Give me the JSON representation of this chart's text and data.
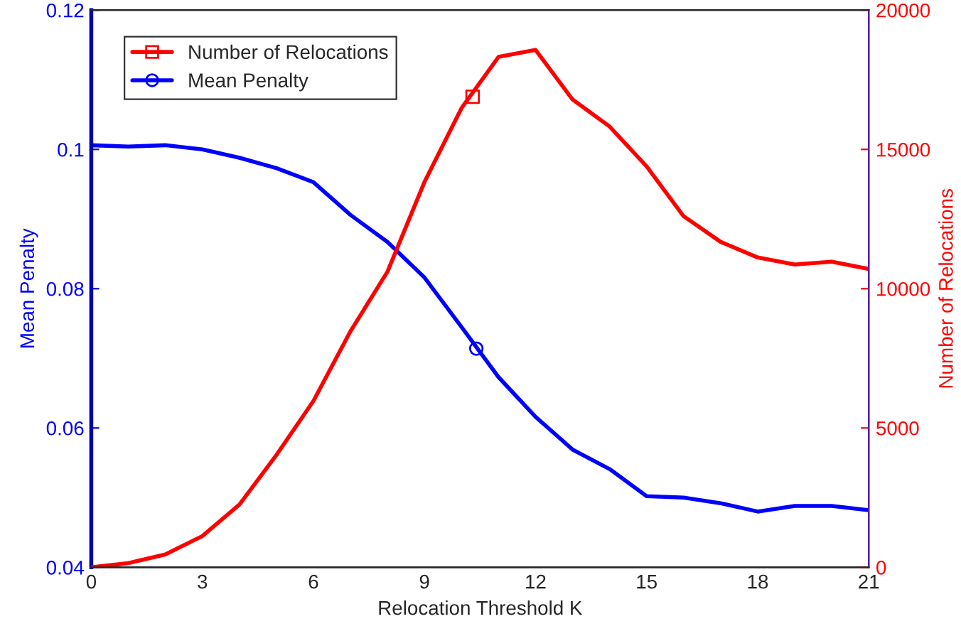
{
  "chart_data": {
    "type": "line",
    "xlabel": "Relocation Threshold K",
    "ylabel": "Mean Penalty",
    "y2label": "Number of Relocations",
    "x": [
      0,
      1,
      2,
      3,
      4,
      5,
      6,
      7,
      8,
      9,
      10,
      11,
      12,
      13,
      14,
      15,
      16,
      17,
      18,
      19,
      20,
      21
    ],
    "series": [
      {
        "name": "Number of Relocations",
        "color": "#ff0000",
        "axis": "y2",
        "values": [
          0,
          150,
          460,
          1120,
          2250,
          4030,
          5970,
          8470,
          10610,
          13830,
          16480,
          18320,
          18570,
          16790,
          15820,
          14390,
          12600,
          11680,
          11120,
          10870,
          10970,
          10710
        ]
      },
      {
        "name": "Mean Penalty",
        "color": "#0000ff",
        "axis": "y",
        "values": [
          0.1006,
          0.1004,
          0.1006,
          0.1,
          0.0988,
          0.0973,
          0.0953,
          0.0906,
          0.0867,
          0.0816,
          0.0745,
          0.0673,
          0.0616,
          0.0569,
          0.0541,
          0.0502,
          0.05,
          0.0492,
          0.048,
          0.0488,
          0.0488,
          0.0482
        ]
      },
      {
        "type": "scatter",
        "color": "#ff0000",
        "axis": "y2",
        "marker": "square",
        "x": [
          10.3
        ],
        "values": [
          16890
        ]
      },
      {
        "type": "scatter",
        "color": "#0000ff",
        "axis": "y",
        "marker": "circle",
        "x": [
          10.4
        ],
        "values": [
          0.0714
        ]
      }
    ],
    "xlim": [
      0,
      21
    ],
    "xticks": [
      0,
      3,
      6,
      9,
      12,
      15,
      18,
      21
    ],
    "ylim": [
      0.04,
      0.12
    ],
    "yticks": [
      0.04,
      0.06,
      0.08,
      {
        "value": 0.1,
        "label": "0.1"
      },
      0.12
    ],
    "y2lim": [
      0,
      20000
    ],
    "y2ticks": [
      0,
      5000,
      10000,
      15000,
      20000
    ],
    "legend": "top left",
    "grid": false
  }
}
